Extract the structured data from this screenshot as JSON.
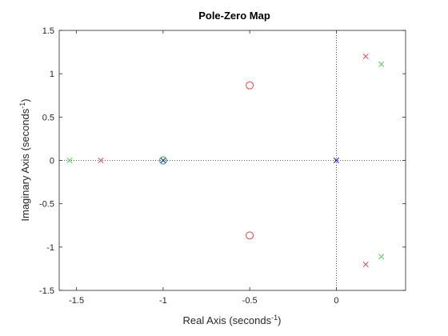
{
  "chart_data": {
    "type": "scatter",
    "title": "Pole-Zero Map",
    "xlabel": {
      "prefix": "Real  Axis  (seconds",
      "superscript": "-1",
      "suffix": ")"
    },
    "ylabel": {
      "prefix": "Imaginary  Axis  (seconds",
      "superscript": "-1",
      "suffix": ")"
    },
    "xlim": [
      -1.6,
      0.4
    ],
    "ylim": [
      -1.5,
      1.5
    ],
    "xticks": [
      -1.5,
      -1,
      -0.5,
      0
    ],
    "xtick_labels": [
      "-1.5",
      "-1",
      "-0.5",
      "0"
    ],
    "yticks": [
      -1.5,
      -1,
      -0.5,
      0,
      0.5,
      1,
      1.5
    ],
    "ytick_labels": [
      "-1.5",
      "-1",
      "-0.5",
      "0",
      "0.5",
      "1",
      "1.5"
    ],
    "grid": false,
    "reference_lines": {
      "x": 0,
      "y": 0,
      "style": "dotted"
    },
    "series": [
      {
        "color": "#0000ff",
        "poles": [
          [
            -1.0,
            0.0
          ],
          [
            0.0,
            0.0
          ]
        ],
        "zeros": [
          [
            -1.0,
            0.0
          ]
        ]
      },
      {
        "color": "#e8404a",
        "poles": [
          [
            -1.36,
            0.0
          ],
          [
            0.17,
            1.2
          ],
          [
            0.17,
            -1.2
          ]
        ],
        "zeros": [
          [
            -0.5,
            0.866
          ],
          [
            -0.5,
            -0.866
          ]
        ]
      },
      {
        "color": "#3dd43d",
        "poles": [
          [
            -1.54,
            0.0
          ],
          [
            0.26,
            1.11
          ],
          [
            0.26,
            -1.11
          ]
        ],
        "zeros": [
          [
            -1.0,
            0.0
          ]
        ]
      }
    ]
  }
}
